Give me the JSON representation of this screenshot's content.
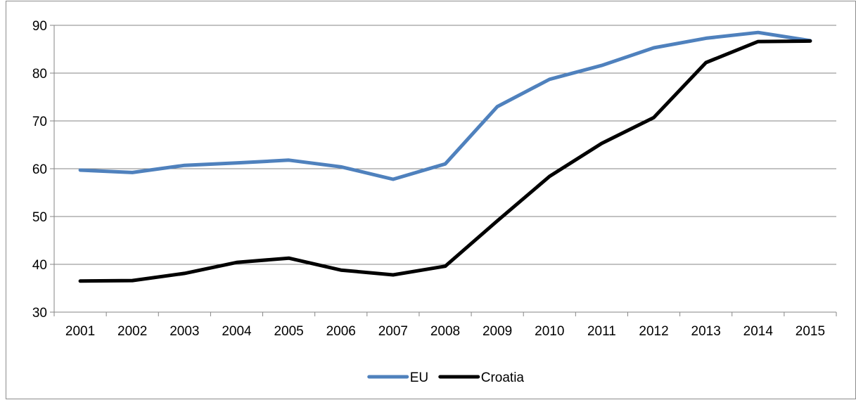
{
  "chart_data": {
    "type": "line",
    "title": "",
    "xlabel": "",
    "ylabel": "",
    "x": [
      "2001",
      "2002",
      "2003",
      "2004",
      "2005",
      "2006",
      "2007",
      "2008",
      "2009",
      "2010",
      "2011",
      "2012",
      "2013",
      "2014",
      "2015"
    ],
    "ylim": [
      30,
      90
    ],
    "yticks": [
      30,
      40,
      50,
      60,
      70,
      80,
      90
    ],
    "grid": true,
    "legend": "bottom",
    "series": [
      {
        "name": "EU",
        "color": "#4f81bd",
        "values": [
          59.7,
          59.2,
          60.7,
          61.2,
          61.8,
          60.4,
          57.8,
          61.0,
          73.0,
          78.7,
          81.6,
          85.3,
          87.3,
          88.5,
          86.8
        ]
      },
      {
        "name": "Croatia",
        "color": "#000000",
        "values": [
          36.5,
          36.6,
          38.1,
          40.4,
          41.3,
          38.8,
          37.8,
          39.6,
          49.1,
          58.4,
          65.3,
          70.7,
          82.2,
          86.6,
          86.7
        ]
      }
    ]
  }
}
